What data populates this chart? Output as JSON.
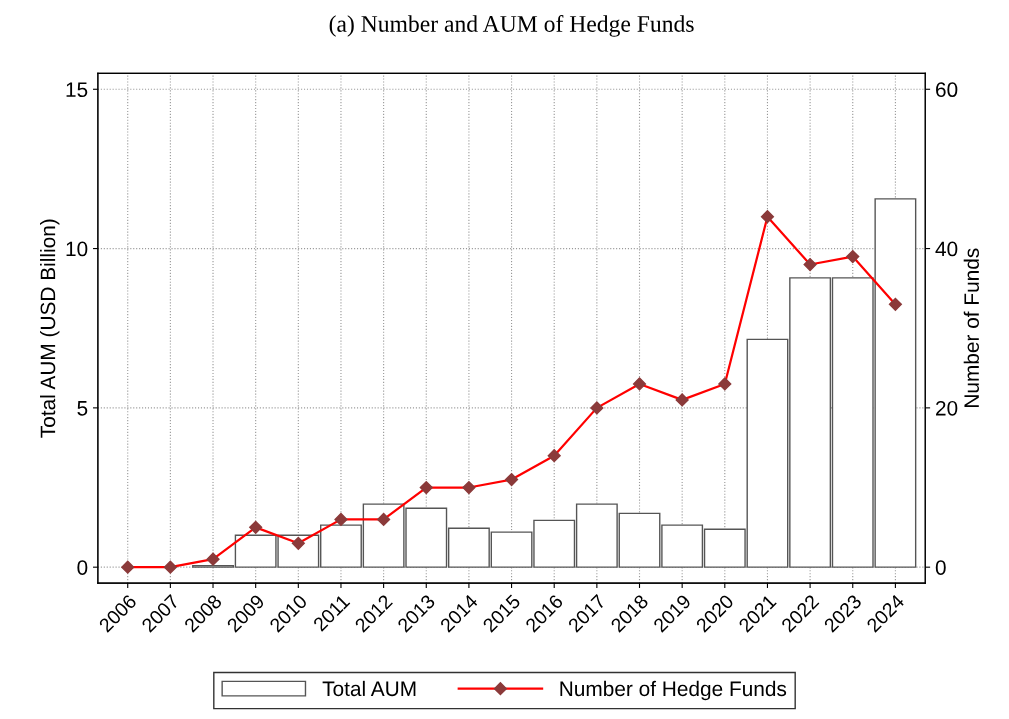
{
  "chart_data": {
    "type": "bar",
    "title": "(a) Number and AUM of Hedge Funds",
    "categories": [
      "2006",
      "2007",
      "2008",
      "2009",
      "2010",
      "2011",
      "2012",
      "2013",
      "2014",
      "2015",
      "2016",
      "2017",
      "2018",
      "2019",
      "2020",
      "2021",
      "2022",
      "2023",
      "2024"
    ],
    "series": [
      {
        "name": "Total AUM",
        "color": "#555555",
        "values": [
          0,
          0,
          0.05,
          1.0,
          1.0,
          1.32,
          1.98,
          1.85,
          1.22,
          1.1,
          1.47,
          1.98,
          1.69,
          1.32,
          1.19,
          7.15,
          9.08,
          9.08,
          11.56
        ]
      },
      {
        "name": "Number of Hedge Funds",
        "type": "line",
        "axis": "y2",
        "color": "#ff0000",
        "values": [
          0,
          0,
          1,
          5,
          3,
          6,
          6,
          10,
          10,
          11,
          14,
          20,
          23,
          21,
          23,
          44,
          38,
          39,
          33
        ]
      }
    ],
    "ylabel": "Total AUM (USD Billion)",
    "y2label": "Number of Funds",
    "ylim": [
      -0.5,
      15.5
    ],
    "yticks": [
      0,
      5,
      10,
      15
    ],
    "y2lim": [
      -2,
      62
    ],
    "y2ticks": [
      0,
      20,
      40,
      60
    ],
    "grid": true,
    "legend": "bottom",
    "marker": "diamond",
    "line_style": "solid"
  }
}
